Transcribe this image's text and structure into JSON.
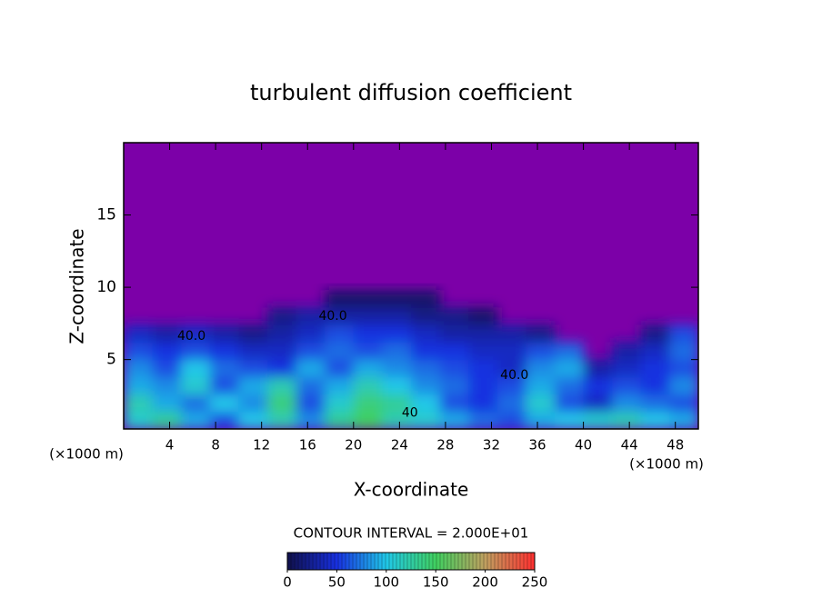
{
  "chart_data": {
    "type": "heatmap",
    "title": "turbulent diffusion coefficient",
    "x_label": "X-coordinate",
    "y_label": "Z-coordinate",
    "x_unit": "(×1000 m)",
    "y_unit": "(×1000 m)",
    "subtitle": "CONTOUR INTERVAL = 2.000E+01",
    "background_color": "#7c00a8",
    "xlim": [
      0,
      50
    ],
    "ylim": [
      0.2,
      20
    ],
    "xticks": [
      4,
      8,
      12,
      16,
      20,
      24,
      28,
      32,
      36,
      40,
      44,
      48
    ],
    "yticks": [
      5,
      10,
      15
    ],
    "x": [
      1.25,
      3.75,
      6.25,
      8.75,
      11.25,
      13.75,
      16.25,
      18.75,
      21.25,
      23.75,
      26.25,
      28.75,
      31.25,
      33.75,
      36.25,
      38.75,
      41.25,
      43.75,
      46.25,
      48.75
    ],
    "z": [
      0.8,
      2.0,
      3.2,
      4.4,
      5.6,
      6.8,
      8.0,
      9.2
    ],
    "values": [
      [
        110,
        130,
        90,
        60,
        100,
        120,
        80,
        130,
        150,
        120,
        110,
        90,
        70,
        60,
        90,
        100,
        110,
        120,
        100,
        90
      ],
      [
        120,
        90,
        70,
        100,
        80,
        140,
        60,
        110,
        140,
        130,
        100,
        60,
        50,
        70,
        110,
        60,
        40,
        80,
        70,
        60
      ],
      [
        90,
        80,
        110,
        60,
        90,
        120,
        70,
        90,
        120,
        100,
        80,
        70,
        50,
        60,
        90,
        70,
        50,
        60,
        50,
        80
      ],
      [
        80,
        60,
        100,
        70,
        60,
        50,
        90,
        60,
        90,
        80,
        70,
        60,
        50,
        40,
        80,
        90,
        30,
        40,
        50,
        60
      ],
      [
        60,
        50,
        60,
        50,
        40,
        40,
        60,
        70,
        60,
        70,
        50,
        50,
        40,
        40,
        60,
        70,
        null,
        30,
        40,
        70
      ],
      [
        40,
        30,
        40,
        30,
        20,
        30,
        40,
        60,
        50,
        50,
        40,
        30,
        30,
        30,
        20,
        null,
        null,
        null,
        20,
        60
      ],
      [
        null,
        null,
        null,
        null,
        null,
        20,
        30,
        30,
        30,
        30,
        20,
        20,
        10,
        null,
        null,
        null,
        null,
        null,
        null,
        null
      ],
      [
        null,
        null,
        null,
        null,
        null,
        null,
        null,
        10,
        10,
        10,
        10,
        null,
        null,
        null,
        null,
        null,
        null,
        null,
        null,
        null
      ]
    ],
    "annotations": [
      {
        "text": "40.0",
        "x": 18.2,
        "z": 8.0
      },
      {
        "text": "40.0",
        "x": 5.9,
        "z": 6.6
      },
      {
        "text": "40.0",
        "x": 34,
        "z": 3.9
      },
      {
        "text": "40",
        "x": 24.9,
        "z": 1.3
      }
    ],
    "colorbar": {
      "lim": [
        0,
        250
      ],
      "ticks": [
        0,
        50,
        100,
        150,
        200,
        250
      ],
      "colormap": [
        "#10104a",
        "#1830e0",
        "#20c8e8",
        "#40d060",
        "#c0a060",
        "#ff3030"
      ]
    }
  }
}
